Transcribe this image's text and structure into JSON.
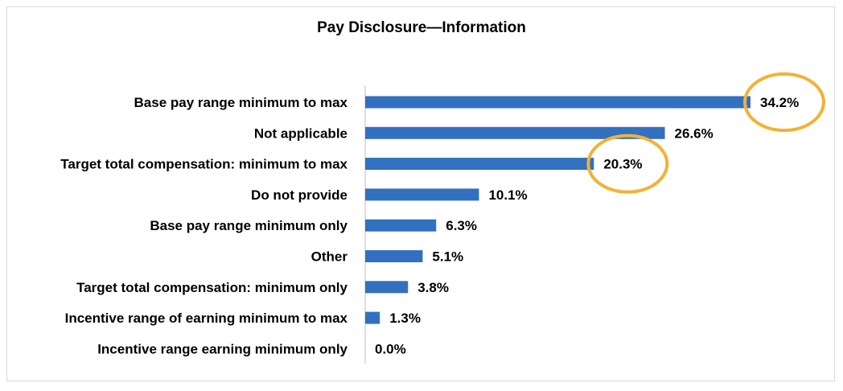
{
  "chart_data": {
    "type": "bar",
    "orientation": "horizontal",
    "title": "Pay Disclosure—Information",
    "categories": [
      "Base pay range minimum to max",
      "Not applicable",
      "Target total compensation: minimum to max",
      "Do not provide",
      "Base pay range minimum only",
      "Other",
      "Target total compensation: minimum only",
      "Incentive range of earning minimum to max",
      "Incentive range earning minimum only"
    ],
    "values": [
      34.2,
      26.6,
      20.3,
      10.1,
      6.3,
      5.1,
      3.8,
      1.3,
      0.0
    ],
    "value_labels": [
      "34.2%",
      "26.6%",
      "20.3%",
      "10.1%",
      "6.3%",
      "5.1%",
      "3.8%",
      "1.3%",
      "0.0%"
    ],
    "xlim": [
      0,
      34.2
    ],
    "grid": false,
    "highlighted": [
      "34.2%",
      "20.3%"
    ],
    "colors": {
      "bar": "#3370bf",
      "highlight": "#f2b233",
      "axis": "#bfbfbf"
    }
  }
}
